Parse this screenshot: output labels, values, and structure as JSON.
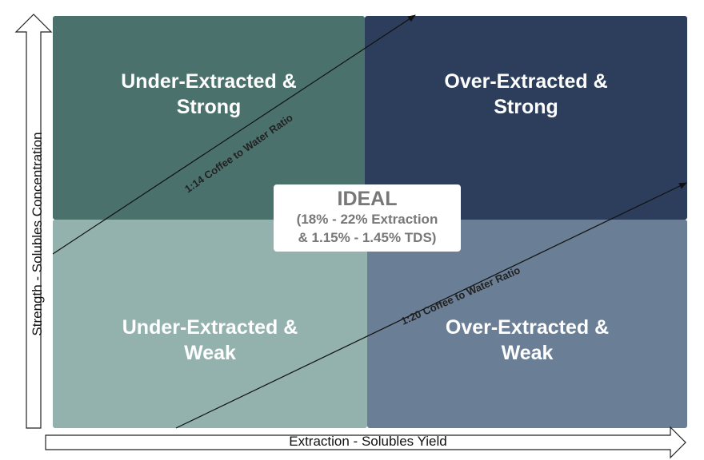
{
  "quadrants": {
    "top_left": {
      "line1": "Under-Extracted &",
      "line2": "Strong"
    },
    "top_right": {
      "line1": "Over-Extracted &",
      "line2": "Strong"
    },
    "bottom_left": {
      "line1": "Under-Extracted &",
      "line2": "Weak"
    },
    "bottom_right": {
      "line1": "Over-Extracted &",
      "line2": "Weak"
    }
  },
  "ideal": {
    "title": "IDEAL",
    "line1": "(18% - 22% Extraction",
    "line2": "& 1.15% - 1.45% TDS)"
  },
  "ratio_lines": {
    "strong": "1:14 Coffee to Water Ratio",
    "weak": "1:20 Coffee to Water Ratio"
  },
  "axes": {
    "x_label": "Extraction - Solubles Yield",
    "y_label": "Strength - Solubles Concentration"
  },
  "colors": {
    "top_left": "#4a716c",
    "top_right": "#2c3e5c",
    "bottom_left": "#93b2ae",
    "bottom_right": "#6a7e95"
  }
}
